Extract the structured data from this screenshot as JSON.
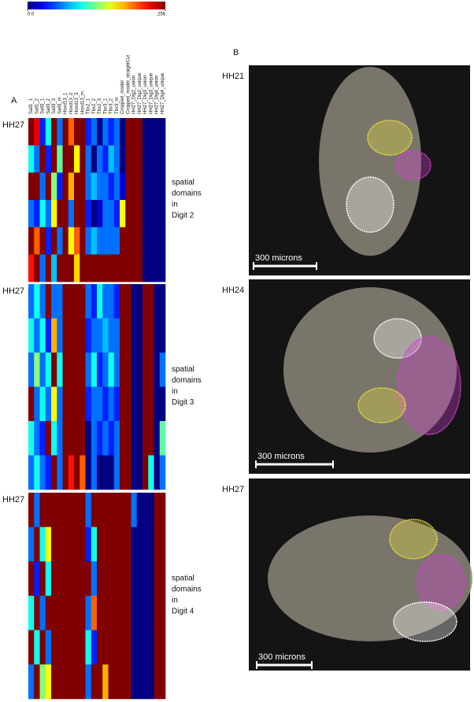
{
  "colorbar": {
    "range": [
      0,
      256
    ],
    "ticks": [
      {
        "value": 0,
        "label": "0.0"
      },
      256
    ]
  },
  "panel_a": {
    "label": "A",
    "columns": [
      "Sall1_1",
      "Sall1_2",
      "Sall3_1",
      "Sall3_2",
      "Sall3_3",
      "Sall3_m",
      "Hoxd13_1",
      "Hoxd13_2",
      "Hoxd13_3",
      "Hoxd13_m",
      "Tbx2_1",
      "Tbx2_2",
      "Tbx2_3",
      "Tbx3_1",
      "Tbx3_2",
      "Tbx3_m",
      "Cropped_model",
      "Cropped_model_straightCut",
      "HH27_Dig2_union",
      "HH27_Dig2_unique",
      "HH27_Dig3_union",
      "HH27_Dig3_unique",
      "HH27_Dig4_union",
      "HH27_Dig4_unique"
    ],
    "heatmaps": [
      {
        "stage": "HH27",
        "caption": [
          "spatial",
          "domains",
          "in",
          "Digit 2"
        ],
        "rows": [
          [
            256,
            230,
            40,
            100,
            256,
            60,
            256,
            200,
            256,
            256,
            40,
            60,
            0,
            60,
            40,
            60,
            0,
            256,
            256,
            256,
            0,
            0,
            0,
            0
          ],
          [
            100,
            60,
            256,
            40,
            256,
            120,
            256,
            256,
            160,
            256,
            60,
            0,
            60,
            40,
            80,
            60,
            0,
            256,
            256,
            256,
            0,
            0,
            0,
            0
          ],
          [
            256,
            256,
            60,
            256,
            130,
            40,
            256,
            180,
            256,
            256,
            60,
            80,
            60,
            60,
            40,
            60,
            20,
            256,
            256,
            256,
            0,
            0,
            0,
            0
          ],
          [
            60,
            40,
            100,
            60,
            160,
            256,
            256,
            60,
            256,
            256,
            40,
            0,
            20,
            60,
            60,
            40,
            160,
            256,
            256,
            256,
            0,
            0,
            0,
            0
          ],
          [
            256,
            200,
            256,
            40,
            256,
            60,
            256,
            160,
            200,
            256,
            60,
            80,
            60,
            60,
            60,
            60,
            256,
            256,
            256,
            256,
            0,
            0,
            0,
            0
          ],
          [
            220,
            256,
            60,
            256,
            80,
            256,
            256,
            256,
            170,
            256,
            256,
            256,
            256,
            256,
            256,
            256,
            256,
            256,
            256,
            256,
            0,
            0,
            0,
            0
          ]
        ]
      },
      {
        "stage": "HH27",
        "caption": [
          "spatial",
          "domains",
          "in",
          "Digit 3"
        ],
        "rows": [
          [
            60,
            100,
            60,
            256,
            60,
            60,
            256,
            256,
            256,
            256,
            60,
            40,
            100,
            60,
            60,
            40,
            256,
            256,
            0,
            0,
            256,
            256,
            0,
            0
          ],
          [
            100,
            60,
            100,
            40,
            180,
            60,
            256,
            256,
            256,
            256,
            40,
            60,
            60,
            80,
            60,
            60,
            256,
            256,
            0,
            0,
            256,
            256,
            0,
            0
          ],
          [
            60,
            130,
            60,
            100,
            256,
            100,
            256,
            256,
            256,
            256,
            60,
            100,
            40,
            60,
            100,
            60,
            256,
            256,
            0,
            0,
            256,
            256,
            0,
            60
          ],
          [
            256,
            60,
            100,
            60,
            160,
            60,
            256,
            256,
            256,
            256,
            40,
            60,
            60,
            40,
            60,
            40,
            256,
            256,
            0,
            0,
            256,
            256,
            0,
            0
          ],
          [
            100,
            60,
            40,
            256,
            100,
            60,
            256,
            256,
            256,
            256,
            0,
            60,
            40,
            60,
            40,
            60,
            256,
            256,
            0,
            0,
            256,
            256,
            0,
            120
          ],
          [
            60,
            100,
            60,
            40,
            256,
            60,
            256,
            220,
            256,
            200,
            0,
            60,
            0,
            0,
            0,
            60,
            256,
            256,
            0,
            0,
            256,
            100,
            0,
            60
          ]
        ]
      },
      {
        "stage": "HH27",
        "caption": [
          "spatial",
          "domains",
          "in",
          "Digit 4"
        ],
        "rows": [
          [
            256,
            60,
            256,
            256,
            256,
            256,
            256,
            256,
            256,
            256,
            60,
            256,
            256,
            256,
            256,
            256,
            256,
            256,
            60,
            0,
            0,
            0,
            256,
            256
          ],
          [
            60,
            256,
            100,
            160,
            256,
            256,
            256,
            256,
            256,
            256,
            40,
            100,
            256,
            256,
            256,
            256,
            256,
            256,
            0,
            0,
            0,
            0,
            256,
            256
          ],
          [
            256,
            40,
            256,
            100,
            256,
            256,
            256,
            256,
            256,
            256,
            256,
            60,
            256,
            256,
            256,
            256,
            256,
            256,
            0,
            0,
            0,
            0,
            256,
            256
          ],
          [
            100,
            256,
            60,
            256,
            256,
            256,
            256,
            256,
            256,
            256,
            60,
            200,
            256,
            256,
            256,
            256,
            256,
            256,
            0,
            0,
            0,
            0,
            256,
            256
          ],
          [
            256,
            100,
            256,
            60,
            256,
            256,
            256,
            256,
            256,
            256,
            100,
            40,
            256,
            256,
            256,
            256,
            256,
            256,
            0,
            0,
            0,
            0,
            256,
            256
          ],
          [
            60,
            256,
            130,
            160,
            256,
            256,
            256,
            256,
            256,
            256,
            60,
            256,
            256,
            180,
            256,
            256,
            256,
            256,
            0,
            0,
            0,
            0,
            256,
            256
          ]
        ]
      }
    ]
  },
  "panel_b": {
    "label": "B",
    "images": [
      {
        "stage": "HH21",
        "scale_bar": "300 microns"
      },
      {
        "stage": "HH24",
        "scale_bar": "300 microns"
      },
      {
        "stage": "HH27",
        "scale_bar": "300 microns"
      }
    ]
  }
}
